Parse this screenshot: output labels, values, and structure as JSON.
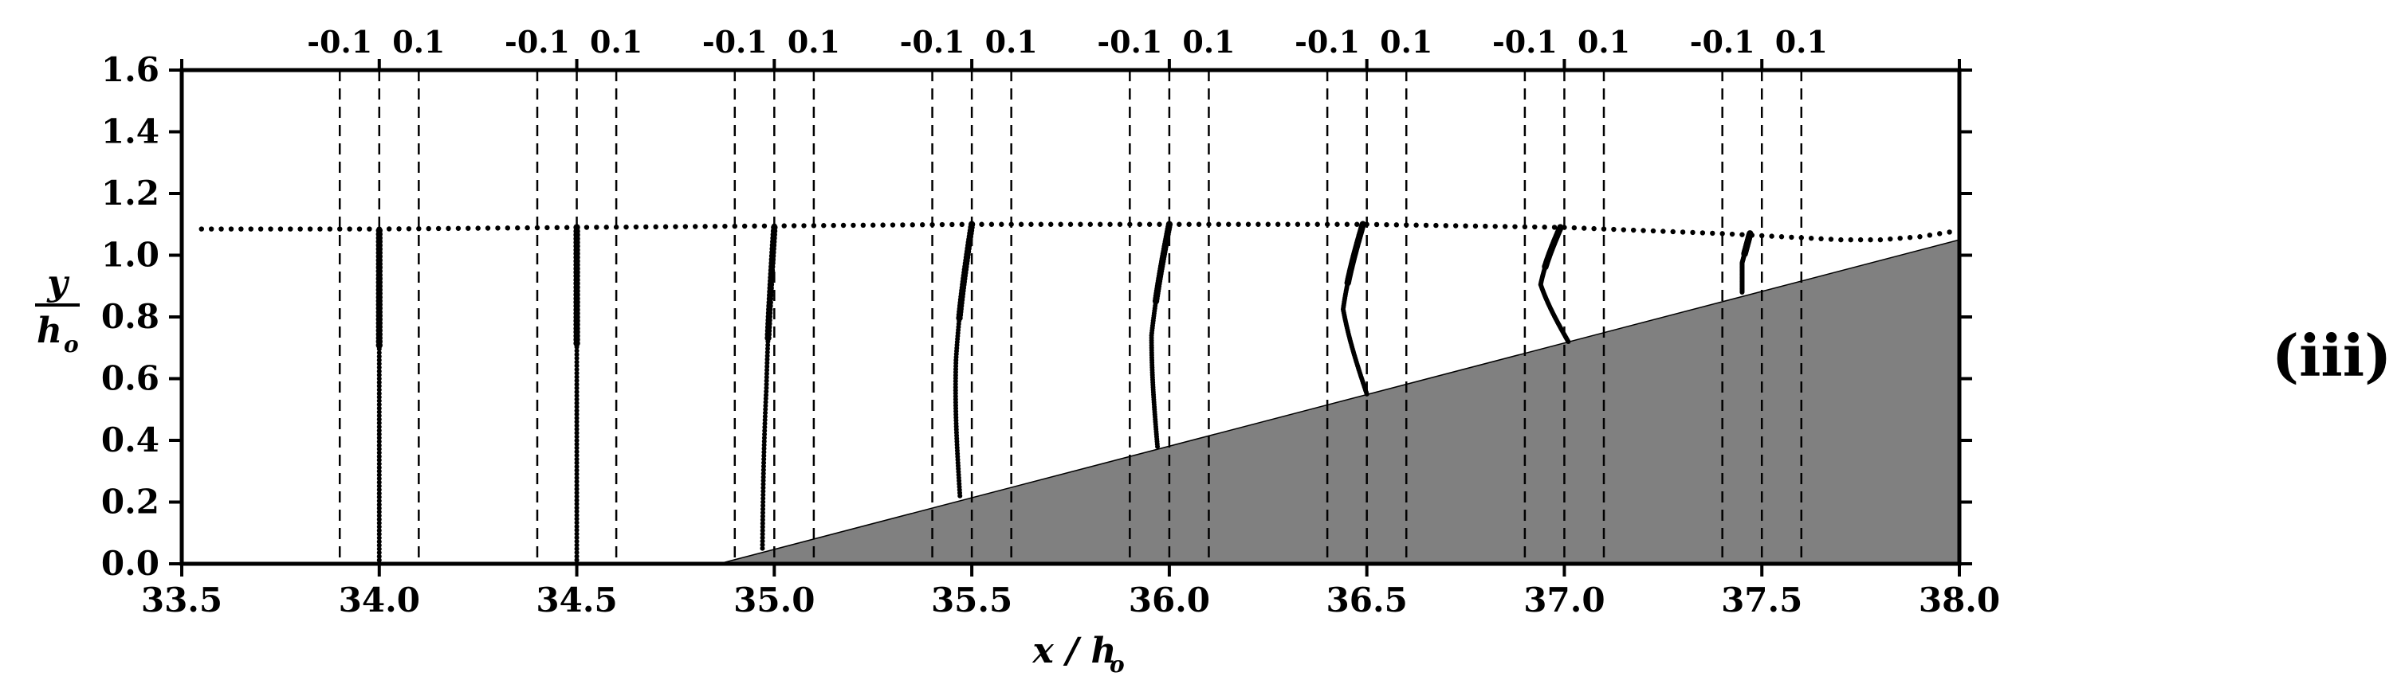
{
  "chart_data": {
    "type": "scatter",
    "title": "",
    "panel_label": "(iii)",
    "xlabel": {
      "main": "x / h",
      "sub": "o"
    },
    "ylabel": {
      "num": "y",
      "den": "h",
      "den_sub": "o"
    },
    "xlim": [
      33.5,
      38.0
    ],
    "ylim": [
      0.0,
      1.6
    ],
    "xticks": [
      "33.5",
      "34.0",
      "34.5",
      "35.0",
      "35.5",
      "36.0",
      "36.5",
      "37.0",
      "37.5",
      "38.0"
    ],
    "yticks": [
      "0.0",
      "0.2",
      "0.4",
      "0.6",
      "0.8",
      "1.0",
      "1.2",
      "1.4",
      "1.6"
    ],
    "profile_scale_labels": [
      "-0.1",
      "0.1"
    ],
    "profile_scale_value": 0.1,
    "grid": false,
    "slope": {
      "description": "sloping bed",
      "start": [
        34.86,
        0.0
      ],
      "end": [
        38.0,
        1.05
      ],
      "fill_color": "#808080"
    },
    "free_surface": [
      [
        33.55,
        1.085
      ],
      [
        34.0,
        1.085
      ],
      [
        34.5,
        1.09
      ],
      [
        35.0,
        1.095
      ],
      [
        35.5,
        1.1
      ],
      [
        36.0,
        1.1
      ],
      [
        36.5,
        1.1
      ],
      [
        37.0,
        1.09
      ],
      [
        37.2,
        1.08
      ],
      [
        37.4,
        1.07
      ],
      [
        37.55,
        1.06
      ],
      [
        37.7,
        1.05
      ],
      [
        37.8,
        1.05
      ],
      [
        37.9,
        1.06
      ],
      [
        38.0,
        1.08
      ]
    ],
    "profiles": [
      {
        "station": 34.0,
        "bed": 0.0,
        "surface": 1.08,
        "u_bed": 0.0,
        "u_mid": 0.0,
        "u_top": 0.0,
        "curve": 0.0
      },
      {
        "station": 34.5,
        "bed": 0.0,
        "surface": 1.09,
        "u_bed": 0.0,
        "u_mid": 0.0,
        "u_top": 0.0,
        "curve": 0.0
      },
      {
        "station": 35.0,
        "bed": 0.05,
        "surface": 1.09,
        "u_bed": -0.03,
        "u_mid": -0.01,
        "u_top": 0.0,
        "curve": 0.01
      },
      {
        "station": 35.5,
        "bed": 0.22,
        "surface": 1.1,
        "u_bed": -0.03,
        "u_mid": -0.02,
        "u_top": 0.0,
        "curve": 0.02
      },
      {
        "station": 36.0,
        "bed": 0.38,
        "surface": 1.1,
        "u_bed": -0.03,
        "u_mid": -0.03,
        "u_top": 0.0,
        "curve": 0.015
      },
      {
        "station": 36.5,
        "bed": 0.55,
        "surface": 1.1,
        "u_bed": 0.0,
        "u_mid": -0.04,
        "u_top": -0.01,
        "curve": 0.02
      },
      {
        "station": 37.0,
        "bed": 0.72,
        "surface": 1.09,
        "u_bed": 0.01,
        "u_mid": -0.04,
        "u_top": -0.01,
        "curve": 0.02
      },
      {
        "station": 37.5,
        "bed": 0.88,
        "surface": 1.07,
        "u_bed": -0.05,
        "u_mid": -0.05,
        "u_top": -0.03,
        "curve": 0.0
      }
    ],
    "colors": {
      "markers": "#000000",
      "bed": "#808080",
      "axes": "#000000",
      "dashed": "#000000"
    }
  }
}
